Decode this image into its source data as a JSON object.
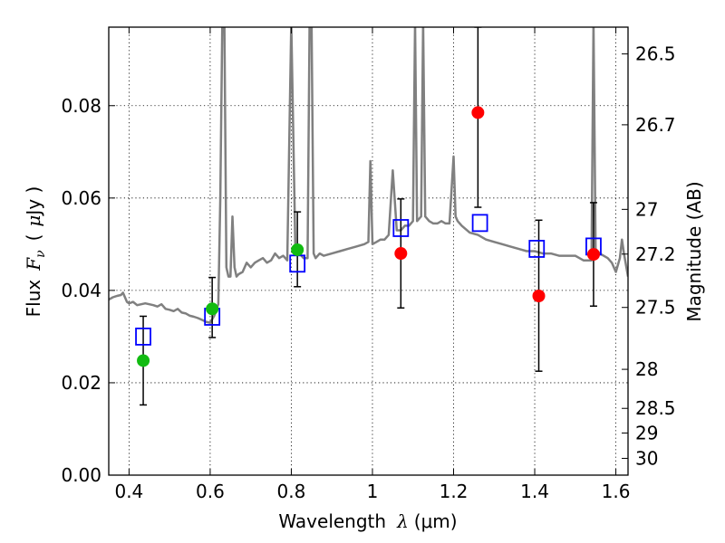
{
  "chart_data": {
    "type": "scatter",
    "xlabel_text": "Wavelength",
    "xlabel_symbol": "λ",
    "xlabel_unit": "(μm)",
    "ylabel_text": "Flux",
    "ylabel_symbol": "F",
    "ylabel_symbol_sub": "ν",
    "ylabel_unit_open": "(",
    "ylabel_unit_mu": "μ",
    "ylabel_unit_rest": "Jy )",
    "y2label": "Magnitude (AB)",
    "xlim": [
      0.35,
      1.63
    ],
    "ylim": [
      0.0,
      0.097
    ],
    "grid": true,
    "x_ticks": [
      {
        "value": 0.4,
        "label": "0.4"
      },
      {
        "value": 0.6,
        "label": "0.6"
      },
      {
        "value": 0.8,
        "label": "0.8"
      },
      {
        "value": 1.0,
        "label": "1"
      },
      {
        "value": 1.2,
        "label": "1.2"
      },
      {
        "value": 1.4,
        "label": "1.4"
      },
      {
        "value": 1.6,
        "label": "1.6"
      }
    ],
    "y_ticks": [
      {
        "value": 0.0,
        "label": "0.00"
      },
      {
        "value": 0.02,
        "label": "0.02"
      },
      {
        "value": 0.04,
        "label": "0.04"
      },
      {
        "value": 0.06,
        "label": "0.06"
      },
      {
        "value": 0.08,
        "label": "0.08"
      }
    ],
    "y2_ticks": [
      {
        "mag": 26.5,
        "label": "26.5"
      },
      {
        "mag": 26.7,
        "label": "26.7"
      },
      {
        "mag": 27.0,
        "label": "27"
      },
      {
        "mag": 27.2,
        "label": "27.2"
      },
      {
        "mag": 27.5,
        "label": "27.5"
      },
      {
        "mag": 28.0,
        "label": "28"
      },
      {
        "mag": 28.5,
        "label": "28.5"
      },
      {
        "mag": 29.0,
        "label": "29"
      },
      {
        "mag": 30.0,
        "label": "30"
      }
    ],
    "spectrum": {
      "color": "#808080",
      "x": [
        0.35,
        0.36,
        0.37,
        0.38,
        0.385,
        0.39,
        0.395,
        0.4,
        0.41,
        0.42,
        0.43,
        0.44,
        0.45,
        0.46,
        0.47,
        0.48,
        0.49,
        0.5,
        0.51,
        0.52,
        0.53,
        0.54,
        0.55,
        0.56,
        0.57,
        0.58,
        0.59,
        0.6,
        0.61,
        0.62,
        0.625,
        0.63,
        0.635,
        0.64,
        0.645,
        0.65,
        0.655,
        0.66,
        0.665,
        0.67,
        0.68,
        0.69,
        0.7,
        0.71,
        0.72,
        0.73,
        0.74,
        0.75,
        0.76,
        0.77,
        0.78,
        0.79,
        0.8,
        0.81,
        0.82,
        0.83,
        0.84,
        0.845,
        0.85,
        0.855,
        0.86,
        0.87,
        0.88,
        0.9,
        0.92,
        0.94,
        0.96,
        0.98,
        0.99,
        0.995,
        1.0,
        1.01,
        1.02,
        1.03,
        1.04,
        1.05,
        1.06,
        1.07,
        1.08,
        1.09,
        1.1,
        1.105,
        1.11,
        1.12,
        1.125,
        1.13,
        1.14,
        1.15,
        1.16,
        1.17,
        1.18,
        1.19,
        1.2,
        1.205,
        1.21,
        1.22,
        1.24,
        1.26,
        1.28,
        1.3,
        1.32,
        1.34,
        1.36,
        1.38,
        1.4,
        1.42,
        1.44,
        1.46,
        1.48,
        1.5,
        1.52,
        1.54,
        1.545,
        1.55,
        1.56,
        1.58,
        1.59,
        1.6,
        1.61,
        1.615,
        1.62,
        1.63
      ],
      "y": [
        0.038,
        0.0385,
        0.0388,
        0.039,
        0.0395,
        0.0385,
        0.0375,
        0.0372,
        0.0375,
        0.0368,
        0.037,
        0.0372,
        0.037,
        0.0368,
        0.0365,
        0.037,
        0.036,
        0.0358,
        0.0355,
        0.036,
        0.0352,
        0.035,
        0.0345,
        0.0343,
        0.034,
        0.0336,
        0.0332,
        0.033,
        0.0345,
        0.037,
        0.06,
        0.098,
        0.098,
        0.045,
        0.043,
        0.043,
        0.056,
        0.045,
        0.043,
        0.0435,
        0.044,
        0.046,
        0.045,
        0.046,
        0.0465,
        0.047,
        0.046,
        0.0465,
        0.048,
        0.047,
        0.0475,
        0.0465,
        0.098,
        0.049,
        0.048,
        0.047,
        0.047,
        0.098,
        0.098,
        0.048,
        0.047,
        0.048,
        0.0475,
        0.048,
        0.0485,
        0.049,
        0.0495,
        0.05,
        0.0505,
        0.068,
        0.05,
        0.0505,
        0.051,
        0.051,
        0.052,
        0.066,
        0.053,
        0.053,
        0.054,
        0.054,
        0.055,
        0.098,
        0.055,
        0.056,
        0.098,
        0.056,
        0.055,
        0.0545,
        0.0545,
        0.055,
        0.0545,
        0.0545,
        0.069,
        0.056,
        0.055,
        0.054,
        0.0525,
        0.052,
        0.051,
        0.0505,
        0.05,
        0.0495,
        0.049,
        0.0485,
        0.0485,
        0.048,
        0.048,
        0.0475,
        0.0475,
        0.0475,
        0.0465,
        0.0465,
        0.098,
        0.049,
        0.048,
        0.047,
        0.046,
        0.044,
        0.047,
        0.051,
        0.048,
        0.043
      ]
    },
    "model_points": {
      "marker": "open-square",
      "color": "#0000ff",
      "x": [
        0.435,
        0.605,
        0.815,
        1.07,
        1.265,
        1.405,
        1.545
      ],
      "y": [
        0.03,
        0.0343,
        0.0458,
        0.0535,
        0.0546,
        0.049,
        0.0495
      ]
    },
    "observed_points": {
      "marker": "filled-circle",
      "series": [
        {
          "color": "#11bb11",
          "x": [
            0.435,
            0.605,
            0.815
          ],
          "y": [
            0.0248,
            0.036,
            0.0488
          ],
          "yerr_low": [
            0.0152,
            0.0298,
            0.0408
          ],
          "yerr_high": [
            0.0344,
            0.0428,
            0.057
          ]
        },
        {
          "color": "#ff0000",
          "x": [
            1.07,
            1.26,
            1.41,
            1.545
          ],
          "y": [
            0.048,
            0.0785,
            0.0388,
            0.0478
          ],
          "yerr_low": [
            0.0362,
            0.058,
            0.0225,
            0.0366
          ],
          "yerr_high": [
            0.0598,
            0.097,
            0.0552,
            0.059
          ]
        }
      ]
    }
  }
}
